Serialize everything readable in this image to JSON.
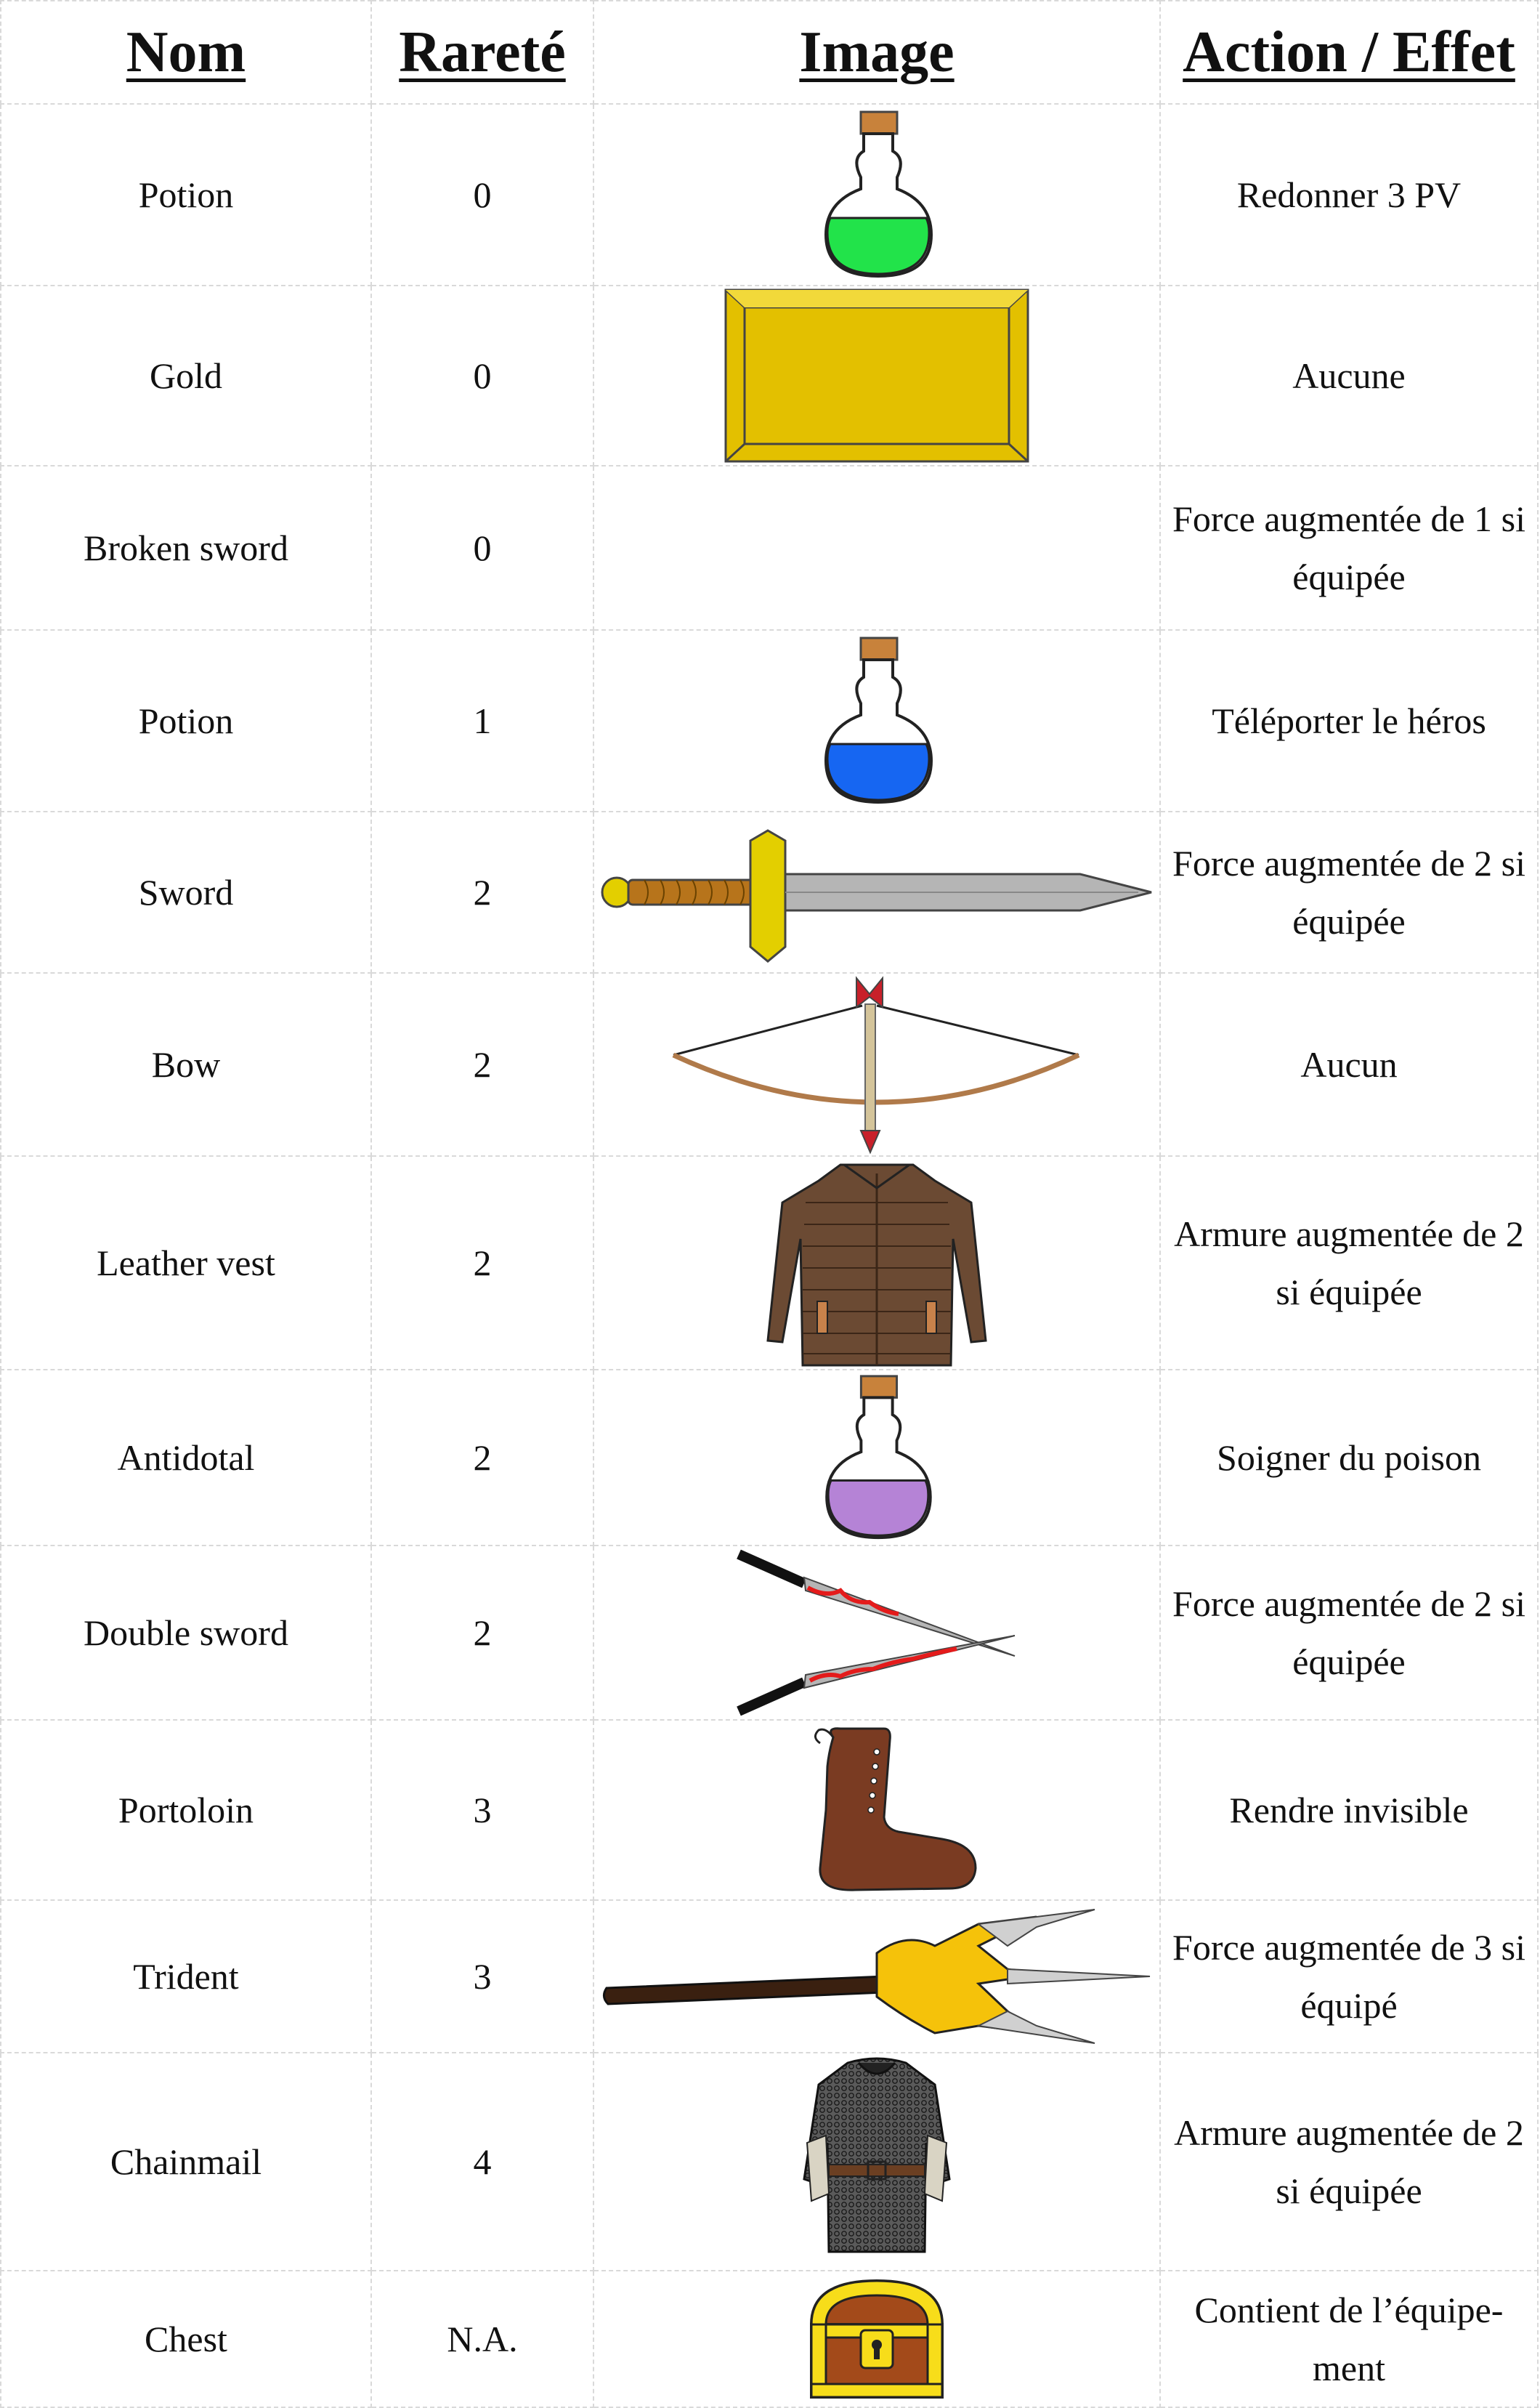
{
  "headers": {
    "name": "Nom",
    "rarity": "Rareté",
    "image": "Image",
    "effect": "Action / Effet"
  },
  "rows": [
    {
      "name": "Potion",
      "rarity": "0",
      "icon": "green-potion-icon",
      "effect": "Redonner 3 PV"
    },
    {
      "name": "Gold",
      "rarity": "0",
      "icon": "gold-bar-icon",
      "effect": "Aucune"
    },
    {
      "name": "Broken sword",
      "rarity": "0",
      "icon": "",
      "effect": "Force augmentée de 1 si équipée"
    },
    {
      "name": "Potion",
      "rarity": "1",
      "icon": "blue-potion-icon",
      "effect": "Téléporter le héros"
    },
    {
      "name": "Sword",
      "rarity": "2",
      "icon": "sword-icon",
      "effect": "Force augmentée de 2 si équipée"
    },
    {
      "name": "Bow",
      "rarity": "2",
      "icon": "bow-icon",
      "effect": "Aucun"
    },
    {
      "name": "Leather vest",
      "rarity": "2",
      "icon": "leather-vest-icon",
      "effect": "Armure augmentée de 2 si équipée"
    },
    {
      "name": "Antidotal",
      "rarity": "2",
      "icon": "purple-potion-icon",
      "effect": "Soigner du poison"
    },
    {
      "name": "Double sword",
      "rarity": "2",
      "icon": "double-sword-icon",
      "effect": "Force augmentée de 2 si équipée"
    },
    {
      "name": "Portoloin",
      "rarity": "3",
      "icon": "boot-icon",
      "effect": "Rendre invisible"
    },
    {
      "name": "Trident",
      "rarity": "3",
      "icon": "trident-icon",
      "effect": "Force augmentée de 3 si équipé"
    },
    {
      "name": "Chainmail",
      "rarity": "4",
      "icon": "chainmail-icon",
      "effect": "Armure augmentée de 2 si équipée"
    },
    {
      "name": "Chest",
      "rarity": "N.A.",
      "icon": "chest-icon",
      "effect": "Contient de l’équipe-ment"
    }
  ],
  "colors": {
    "potion_green": "#22e34a",
    "potion_blue": "#1666f2",
    "potion_purple": "#b583d6",
    "gold": "#e3c000",
    "leather": "#6b4a33",
    "boot": "#7a3b22"
  }
}
